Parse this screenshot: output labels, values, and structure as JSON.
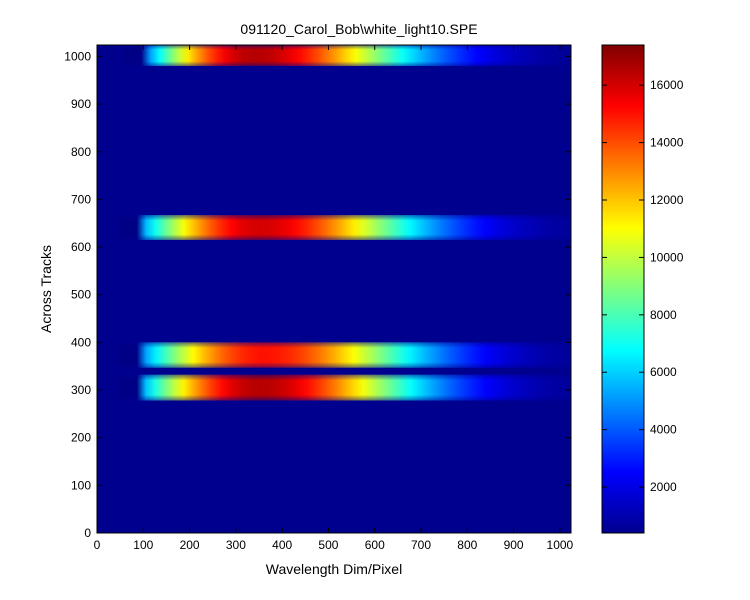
{
  "chart_data": [
    {
      "type": "heatmap",
      "title": "091120_Carol_Bob\\white_light10.SPE",
      "xlabel": "Wavelength Dim/Pixel",
      "ylabel": "Across Tracks",
      "xlim": [
        0,
        1024
      ],
      "ylim": [
        0,
        1024
      ],
      "xticks": [
        0,
        100,
        200,
        300,
        400,
        500,
        600,
        700,
        800,
        900,
        1000
      ],
      "yticks": [
        0,
        100,
        200,
        300,
        400,
        500,
        600,
        700,
        800,
        900,
        1000
      ],
      "background_value": 500,
      "bands": [
        {
          "y_start": 980,
          "y_end": 1024,
          "x_start": 55,
          "peak_x": 300,
          "peak_value": 16500
        },
        {
          "y_start": 615,
          "y_end": 667,
          "x_start": 45,
          "peak_x": 320,
          "peak_value": 16000
        },
        {
          "y_start": 347,
          "y_end": 400,
          "x_start": 45,
          "peak_x": 330,
          "peak_value": 15000
        },
        {
          "y_start": 278,
          "y_end": 332,
          "x_start": 45,
          "peak_x": 320,
          "peak_value": 16500
        }
      ]
    },
    {
      "type": "colorbar",
      "colormap": "jet",
      "range": [
        400,
        17400
      ],
      "ticks": [
        2000,
        4000,
        6000,
        8000,
        10000,
        12000,
        14000,
        16000
      ]
    }
  ]
}
